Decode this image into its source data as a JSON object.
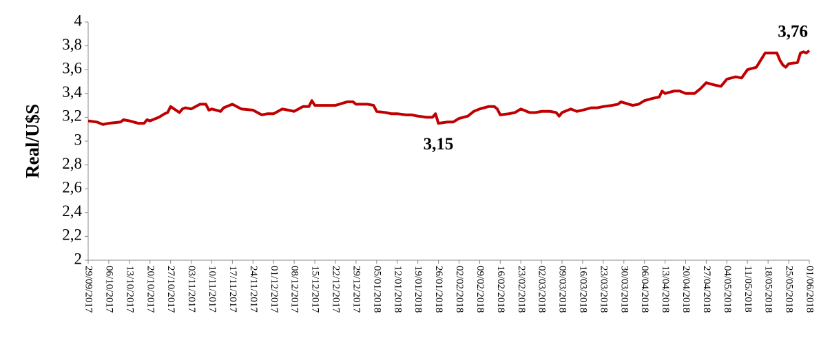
{
  "chart_data": {
    "type": "line",
    "y_label": "Real/U$S",
    "color": "#c00000",
    "x": [
      "29/09/2017",
      "02/10/2017",
      "04/10/2017",
      "06/10/2017",
      "10/10/2017",
      "11/10/2017",
      "13/10/2017",
      "16/10/2017",
      "18/10/2017",
      "19/10/2017",
      "20/10/2017",
      "23/10/2017",
      "25/10/2017",
      "26/10/2017",
      "27/10/2017",
      "30/10/2017",
      "31/10/2017",
      "01/11/2017",
      "03/11/2017",
      "06/11/2017",
      "08/11/2017",
      "09/11/2017",
      "10/11/2017",
      "13/11/2017",
      "14/11/2017",
      "17/11/2017",
      "20/11/2017",
      "24/11/2017",
      "27/11/2017",
      "29/11/2017",
      "01/12/2017",
      "04/12/2017",
      "06/12/2017",
      "08/12/2017",
      "11/12/2017",
      "13/12/2017",
      "14/12/2017",
      "15/12/2017",
      "19/12/2017",
      "22/12/2017",
      "26/12/2017",
      "28/12/2017",
      "29/12/2017",
      "02/01/2018",
      "04/01/2018",
      "05/01/2018",
      "08/01/2018",
      "10/01/2018",
      "12/01/2018",
      "15/01/2018",
      "17/01/2018",
      "19/01/2018",
      "22/01/2018",
      "24/01/2018",
      "25/01/2018",
      "26/01/2018",
      "29/01/2018",
      "31/01/2018",
      "02/02/2018",
      "05/02/2018",
      "07/02/2018",
      "09/02/2018",
      "12/02/2018",
      "14/02/2018",
      "15/02/2018",
      "16/02/2018",
      "19/02/2018",
      "21/02/2018",
      "23/02/2018",
      "26/02/2018",
      "28/02/2018",
      "02/03/2018",
      "05/03/2018",
      "07/03/2018",
      "08/03/2018",
      "09/03/2018",
      "12/03/2018",
      "14/03/2018",
      "16/03/2018",
      "19/03/2018",
      "21/03/2018",
      "23/03/2018",
      "26/03/2018",
      "28/03/2018",
      "29/03/2018",
      "02/04/2018",
      "04/04/2018",
      "06/04/2018",
      "09/04/2018",
      "11/04/2018",
      "12/04/2018",
      "13/04/2018",
      "16/04/2018",
      "18/04/2018",
      "20/04/2018",
      "23/04/2018",
      "25/04/2018",
      "27/04/2018",
      "30/04/2018",
      "02/05/2018",
      "04/05/2018",
      "07/05/2018",
      "09/05/2018",
      "11/05/2018",
      "14/05/2018",
      "15/05/2018",
      "16/05/2018",
      "17/05/2018",
      "21/05/2018",
      "22/05/2018",
      "23/05/2018",
      "24/05/2018",
      "25/05/2018",
      "28/05/2018",
      "29/05/2018",
      "30/05/2018",
      "31/05/2018",
      "01/06/2018"
    ],
    "values": [
      3.17,
      3.16,
      3.14,
      3.15,
      3.16,
      3.18,
      3.17,
      3.15,
      3.15,
      3.18,
      3.17,
      3.2,
      3.23,
      3.24,
      3.29,
      3.24,
      3.27,
      3.28,
      3.27,
      3.31,
      3.31,
      3.26,
      3.27,
      3.25,
      3.28,
      3.31,
      3.27,
      3.26,
      3.22,
      3.23,
      3.23,
      3.27,
      3.26,
      3.25,
      3.29,
      3.29,
      3.34,
      3.3,
      3.3,
      3.3,
      3.33,
      3.33,
      3.31,
      3.31,
      3.3,
      3.25,
      3.24,
      3.23,
      3.23,
      3.22,
      3.22,
      3.21,
      3.2,
      3.2,
      3.23,
      3.15,
      3.16,
      3.16,
      3.19,
      3.21,
      3.25,
      3.27,
      3.29,
      3.29,
      3.27,
      3.22,
      3.23,
      3.24,
      3.27,
      3.24,
      3.24,
      3.25,
      3.25,
      3.24,
      3.21,
      3.24,
      3.27,
      3.25,
      3.26,
      3.28,
      3.28,
      3.29,
      3.3,
      3.31,
      3.33,
      3.3,
      3.31,
      3.34,
      3.36,
      3.37,
      3.42,
      3.4,
      3.42,
      3.42,
      3.4,
      3.4,
      3.44,
      3.49,
      3.47,
      3.46,
      3.52,
      3.54,
      3.53,
      3.6,
      3.62,
      3.66,
      3.7,
      3.74,
      3.74,
      3.68,
      3.64,
      3.62,
      3.65,
      3.66,
      3.74,
      3.75,
      3.74,
      3.76
    ],
    "xlim": [
      "29/09/2017",
      "01/06/2018"
    ],
    "xticks": [
      "29/09/2017",
      "06/10/2017",
      "13/10/2017",
      "20/10/2017",
      "27/10/2017",
      "03/11/2017",
      "10/11/2017",
      "17/11/2017",
      "24/11/2017",
      "01/12/2017",
      "08/12/2017",
      "15/12/2017",
      "22/12/2017",
      "29/12/2017",
      "05/01/2018",
      "12/01/2018",
      "19/01/2018",
      "26/01/2018",
      "02/02/2018",
      "09/02/2018",
      "16/02/2018",
      "23/02/2018",
      "02/03/2018",
      "09/03/2018",
      "16/03/2018",
      "23/03/2018",
      "30/03/2018",
      "06/04/2018",
      "13/04/2018",
      "20/04/2018",
      "27/04/2018",
      "04/05/2018",
      "11/05/2018",
      "18/05/2018",
      "25/05/2018",
      "01/06/2018"
    ],
    "ylim": [
      2,
      4
    ],
    "yticks": [
      2,
      {
        "value": 2.2,
        "label": "2,2"
      },
      {
        "value": 2.4,
        "label": "2,4"
      },
      {
        "value": 2.6,
        "label": "2,6"
      },
      {
        "value": 2.8,
        "label": "2,8"
      },
      3,
      {
        "value": 3.2,
        "label": "3,2"
      },
      {
        "value": 3.4,
        "label": "3,4"
      },
      {
        "value": 3.6,
        "label": "3,6"
      },
      {
        "value": 3.8,
        "label": "3,8"
      },
      4
    ],
    "annotations": [
      {
        "text": "3,15",
        "x": "26/01/2018",
        "value": 3.15
      },
      {
        "text": "3,76",
        "x": "01/06/2018",
        "value": 3.76
      }
    ]
  }
}
